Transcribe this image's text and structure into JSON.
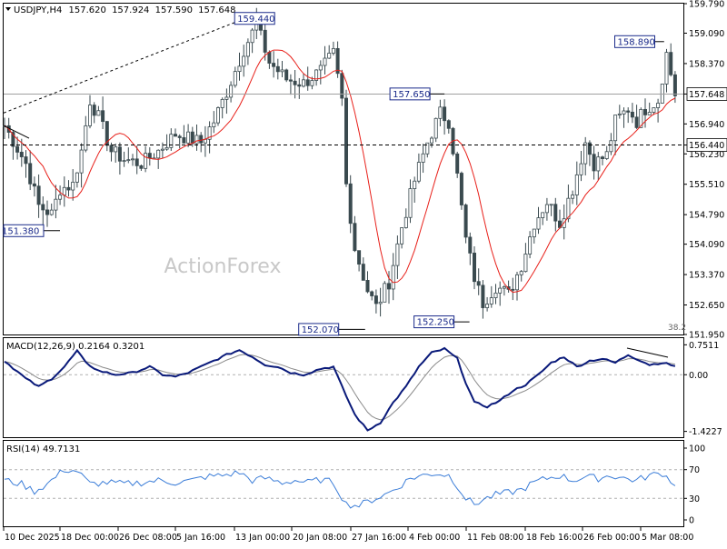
{
  "chart_data": [
    {
      "type": "candlestick",
      "symbol": "USDJPY",
      "timeframe": "H4",
      "ohlc_header": {
        "open": "157.620",
        "high": "157.924",
        "low": "157.590",
        "close": "157.648"
      },
      "price_ticks": [
        "159.790",
        "159.090",
        "158.370",
        "157.648",
        "156.940",
        "156.230",
        "155.510",
        "154.790",
        "154.090",
        "153.370",
        "152.650",
        "151.950"
      ],
      "ylim": [
        151.95,
        159.79
      ],
      "current_price": "157.648",
      "horizontal_line": "156.440",
      "price_labels": [
        "159.440",
        "158.890",
        "157.650",
        "152.070",
        "152.250",
        "151.380"
      ],
      "fib_label": "38.2",
      "watermark": "ActionForex",
      "x_labels": [
        "10 Dec 2025",
        "18 Dec 00:00",
        "26 Dec 08:00",
        "5 Jan 16:00",
        "13 Jan 00:00",
        "20 Jan 08:00",
        "27 Jan 16:00",
        "4 Feb 00:00",
        "11 Feb 08:00",
        "18 Feb 16:00",
        "26 Feb 00:00",
        "5 Mar 08:00"
      ],
      "close_anchors": [
        [
          0,
          156.9
        ],
        [
          5,
          156.0
        ],
        [
          8,
          155.0
        ],
        [
          11,
          154.8
        ],
        [
          13,
          155.4
        ],
        [
          16,
          155.5
        ],
        [
          18,
          156.3
        ],
        [
          20,
          157.5
        ],
        [
          22,
          157.1
        ],
        [
          25,
          156.3
        ],
        [
          28,
          156.1
        ],
        [
          32,
          156.0
        ],
        [
          36,
          156.3
        ],
        [
          40,
          156.7
        ],
        [
          43,
          156.6
        ],
        [
          46,
          156.5
        ],
        [
          49,
          157.0
        ],
        [
          52,
          157.7
        ],
        [
          56,
          158.7
        ],
        [
          59,
          159.3
        ],
        [
          62,
          158.4
        ],
        [
          66,
          158.0
        ],
        [
          70,
          157.9
        ],
        [
          74,
          158.2
        ],
        [
          77,
          158.6
        ],
        [
          79,
          157.5
        ],
        [
          80,
          155.5
        ],
        [
          82,
          154.0
        ],
        [
          85,
          153.0
        ],
        [
          87,
          152.6
        ],
        [
          90,
          153.2
        ],
        [
          93,
          154.5
        ],
        [
          96,
          155.6
        ],
        [
          99,
          156.5
        ],
        [
          102,
          157.2
        ],
        [
          104,
          157.0
        ],
        [
          106,
          155.7
        ],
        [
          108,
          154.2
        ],
        [
          110,
          153.3
        ],
        [
          112,
          152.7
        ],
        [
          115,
          153.1
        ],
        [
          118,
          152.9
        ],
        [
          121,
          153.6
        ],
        [
          124,
          154.6
        ],
        [
          127,
          155.1
        ],
        [
          130,
          154.6
        ],
        [
          133,
          155.4
        ],
        [
          136,
          156.5
        ],
        [
          138,
          156.0
        ],
        [
          141,
          156.2
        ],
        [
          143,
          157.0
        ],
        [
          146,
          157.3
        ],
        [
          148,
          157.0
        ],
        [
          150,
          157.3
        ],
        [
          153,
          157.5
        ],
        [
          155,
          158.6
        ],
        [
          157,
          157.65
        ]
      ],
      "moving_average": {
        "color": "#e8201a"
      }
    },
    {
      "type": "line",
      "title": "MACD(12,26,9) 0.2164 0.3201",
      "ticks": [
        "0.7511",
        "0.00",
        "-1.4227"
      ],
      "ylim": [
        -1.5,
        0.85
      ],
      "series": [
        {
          "name": "MACD",
          "color": "#0a1a7a",
          "anchors": [
            [
              0,
              0.35
            ],
            [
              5,
              -0.1
            ],
            [
              8,
              -0.3
            ],
            [
              11,
              -0.1
            ],
            [
              14,
              0.2
            ],
            [
              17,
              0.6
            ],
            [
              19,
              0.3
            ],
            [
              22,
              0.1
            ],
            [
              26,
              0.0
            ],
            [
              30,
              0.05
            ],
            [
              34,
              0.2
            ],
            [
              37,
              0.0
            ],
            [
              40,
              -0.05
            ],
            [
              43,
              0.05
            ],
            [
              46,
              0.2
            ],
            [
              49,
              0.35
            ],
            [
              52,
              0.5
            ],
            [
              55,
              0.62
            ],
            [
              58,
              0.45
            ],
            [
              61,
              0.25
            ],
            [
              64,
              0.2
            ],
            [
              67,
              0.05
            ],
            [
              70,
              0.0
            ],
            [
              74,
              0.15
            ],
            [
              77,
              0.2
            ],
            [
              79,
              -0.3
            ],
            [
              82,
              -1.0
            ],
            [
              85,
              -1.4
            ],
            [
              88,
              -1.2
            ],
            [
              91,
              -0.7
            ],
            [
              94,
              -0.3
            ],
            [
              97,
              0.2
            ],
            [
              100,
              0.55
            ],
            [
              103,
              0.65
            ],
            [
              106,
              0.4
            ],
            [
              108,
              -0.2
            ],
            [
              110,
              -0.7
            ],
            [
              113,
              -0.8
            ],
            [
              116,
              -0.65
            ],
            [
              119,
              -0.4
            ],
            [
              122,
              -0.25
            ],
            [
              125,
              0.0
            ],
            [
              128,
              0.3
            ],
            [
              131,
              0.45
            ],
            [
              134,
              0.2
            ],
            [
              137,
              0.35
            ],
            [
              140,
              0.4
            ],
            [
              143,
              0.3
            ],
            [
              146,
              0.5
            ],
            [
              148,
              0.4
            ],
            [
              151,
              0.25
            ],
            [
              154,
              0.3
            ],
            [
              157,
              0.22
            ]
          ]
        },
        {
          "name": "Signal",
          "color": "#8a8a8a",
          "anchors": []
        }
      ]
    },
    {
      "type": "line",
      "title": "RSI(14) 49.7131",
      "ticks": [
        "100",
        "70",
        "30",
        "0"
      ],
      "ylim": [
        0,
        100
      ],
      "series": [
        {
          "name": "RSI",
          "color": "#3b7dd8",
          "anchors": [
            [
              0,
              55
            ],
            [
              4,
              50
            ],
            [
              7,
              40
            ],
            [
              10,
              50
            ],
            [
              14,
              70
            ],
            [
              17,
              68
            ],
            [
              20,
              50
            ],
            [
              24,
              52
            ],
            [
              28,
              50
            ],
            [
              32,
              52
            ],
            [
              36,
              55
            ],
            [
              40,
              52
            ],
            [
              44,
              55
            ],
            [
              47,
              60
            ],
            [
              51,
              62
            ],
            [
              55,
              66
            ],
            [
              58,
              55
            ],
            [
              61,
              58
            ],
            [
              65,
              52
            ],
            [
              68,
              55
            ],
            [
              71,
              52
            ],
            [
              74,
              56
            ],
            [
              77,
              52
            ],
            [
              80,
              22
            ],
            [
              83,
              20
            ],
            [
              86,
              28
            ],
            [
              89,
              35
            ],
            [
              92,
              45
            ],
            [
              95,
              58
            ],
            [
              98,
              62
            ],
            [
              101,
              65
            ],
            [
              104,
              62
            ],
            [
              106,
              48
            ],
            [
              108,
              30
            ],
            [
              110,
              22
            ],
            [
              112,
              28
            ],
            [
              115,
              35
            ],
            [
              118,
              38
            ],
            [
              121,
              42
            ],
            [
              124,
              52
            ],
            [
              127,
              58
            ],
            [
              130,
              62
            ],
            [
              133,
              55
            ],
            [
              136,
              60
            ],
            [
              139,
              58
            ],
            [
              142,
              62
            ],
            [
              145,
              58
            ],
            [
              148,
              55
            ],
            [
              151,
              62
            ],
            [
              154,
              65
            ],
            [
              157,
              50
            ]
          ]
        }
      ]
    }
  ]
}
